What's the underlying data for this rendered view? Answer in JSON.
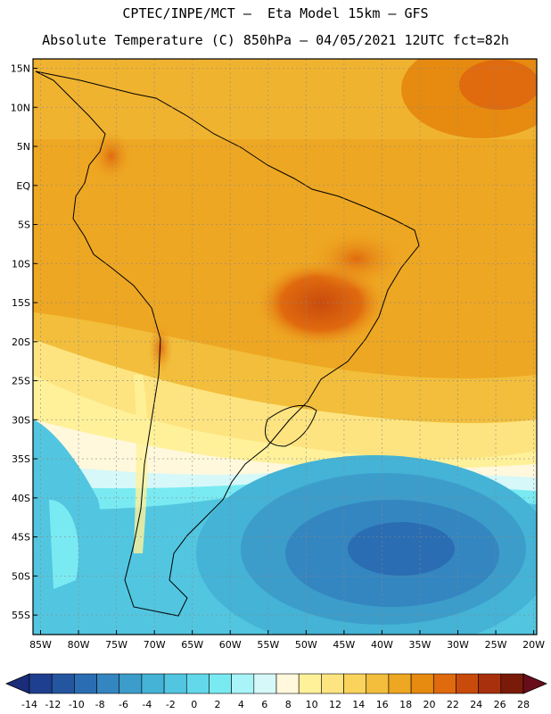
{
  "header": {
    "line1": "CPTEC/INPE/MCT –  Eta Model 15km – GFS",
    "line2": "Absolute Temperature (C) 850hPa – 04/05/2021 12UTC fct=82h"
  },
  "map": {
    "lat_labels": [
      "15N",
      "10N",
      "5N",
      "EQ",
      "5S",
      "10S",
      "15S",
      "20S",
      "25S",
      "30S",
      "35S",
      "40S",
      "45S",
      "50S",
      "55S"
    ],
    "lon_labels": [
      "85W",
      "80W",
      "75W",
      "70W",
      "65W",
      "60W",
      "55W",
      "50W",
      "45W",
      "40W",
      "35W",
      "30W",
      "25W",
      "20W"
    ]
  },
  "colorbar": {
    "labels": [
      "-14",
      "-12",
      "-10",
      "-8",
      "-6",
      "-4",
      "-2",
      "0",
      "2",
      "4",
      "6",
      "8",
      "10",
      "12",
      "14",
      "16",
      "18",
      "20",
      "22",
      "24",
      "26",
      "28"
    ],
    "colors": [
      "#1e3f8f",
      "#2456a0",
      "#2a6db2",
      "#3486c0",
      "#3c9dcb",
      "#44b3d6",
      "#52c6e0",
      "#63d8ea",
      "#7aeaf2",
      "#a8f4f8",
      "#d6f8f8",
      "#fff8dc",
      "#fff19a",
      "#fde480",
      "#f9d35c",
      "#f2be3c",
      "#eea722",
      "#e68a10",
      "#e06a0e",
      "#c94b0c",
      "#a8300c",
      "#7a1a08"
    ],
    "min_arrow_color": "#1a2c7a",
    "max_arrow_color": "#6a0d1a"
  }
}
